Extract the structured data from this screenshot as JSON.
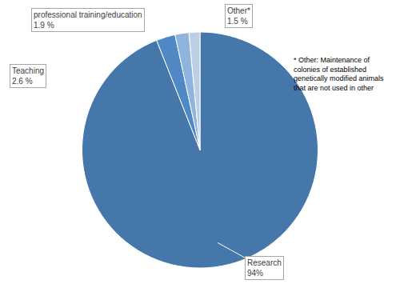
{
  "chart_data": {
    "type": "pie",
    "categories": [
      "Research",
      "Teaching",
      "professional training/education",
      "Other*"
    ],
    "values": [
      94,
      2.6,
      1.9,
      1.5
    ],
    "value_labels": [
      "94%",
      "2.6 %",
      "1.9 %",
      "1.5 %"
    ],
    "colors": [
      "#4677aa",
      "#5088c6",
      "#8fb4de",
      "#bccfe6"
    ],
    "data_labels": true,
    "annotations": [
      "* Other: Maintenance of",
      "colonies of established",
      "genetically modified animals",
      "that are not used in other"
    ]
  }
}
